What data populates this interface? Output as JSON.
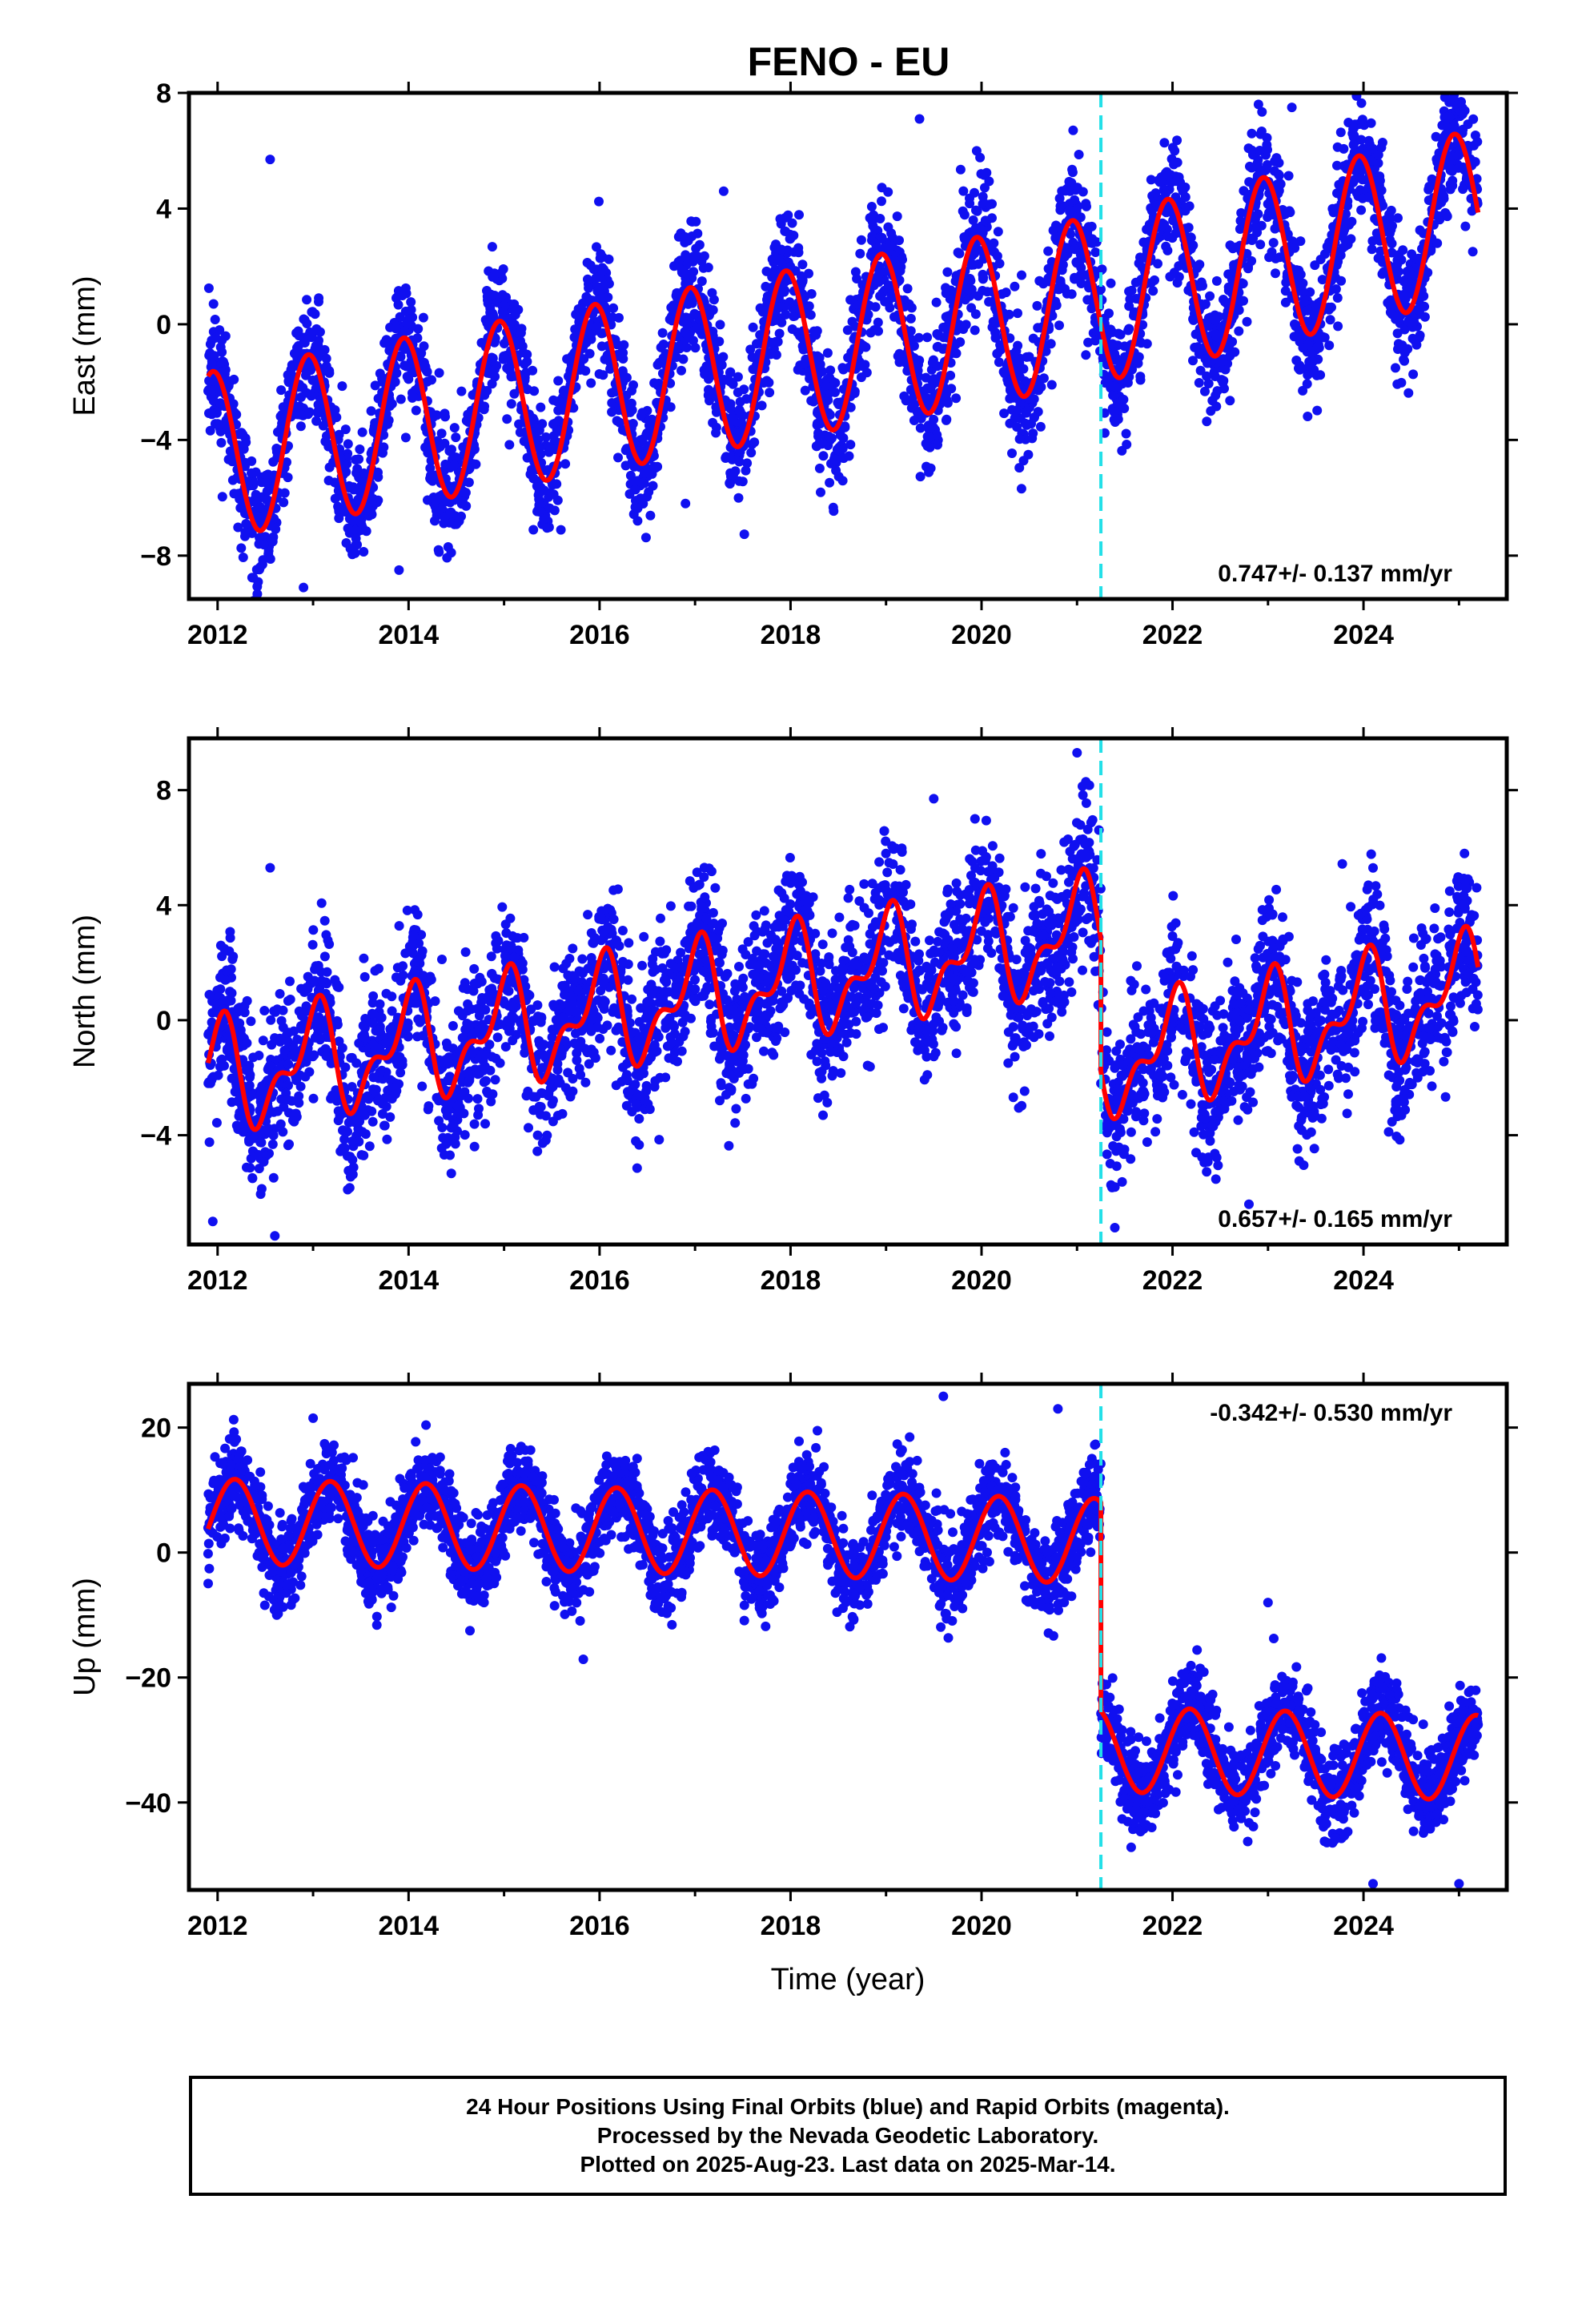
{
  "title": "FENO - EU",
  "colors": {
    "data": "#1010f0",
    "model": "#ff0000",
    "break": "#22e0e8",
    "frame": "#000000"
  },
  "chart_data": [
    {
      "type": "scatter",
      "component": "East",
      "ylabel": "East (mm)",
      "xlabel": "",
      "xlim": [
        2011.7,
        2025.5
      ],
      "ylim": [
        -9.5,
        8
      ],
      "yticks": [
        -8,
        -4,
        0,
        4,
        8
      ],
      "xticks": [
        2012,
        2014,
        2016,
        2018,
        2020,
        2022,
        2024
      ],
      "rate_label": "0.747+/- 0.137 mm/yr",
      "rate_position": "bottom-right",
      "break_year": 2021.25,
      "model": {
        "name": "model",
        "segments": [
          {
            "start": 2011.9,
            "end": 2021.25,
            "offset": -4.5,
            "trend": 0.58,
            "ref": 2012,
            "amp": 2.9,
            "phase_year": 0.45
          },
          {
            "start": 2021.25,
            "end": 2025.2,
            "offset": 0.9,
            "trend": 0.75,
            "ref": 2021.25,
            "amp": 2.9,
            "phase_year": 0.45
          }
        ]
      },
      "scatter": {
        "name": "daily positions",
        "spread": 1.1,
        "count": 4200
      },
      "outliers": [
        [
          2012.55,
          5.7
        ],
        [
          2017.3,
          4.6
        ],
        [
          2019.35,
          7.1
        ],
        [
          2023.25,
          7.5
        ],
        [
          2022.9,
          7.6
        ],
        [
          2012.9,
          -9.1
        ],
        [
          2016.9,
          -6.2
        ],
        [
          2013.9,
          -8.5
        ]
      ]
    },
    {
      "type": "scatter",
      "component": "North",
      "ylabel": "North (mm)",
      "xlabel": "",
      "xlim": [
        2011.7,
        2025.5
      ],
      "ylim": [
        -7.8,
        9.8
      ],
      "yticks": [
        -4,
        0,
        4,
        8
      ],
      "xticks": [
        2012,
        2014,
        2016,
        2018,
        2020,
        2022,
        2024
      ],
      "rate_label": "0.657+/- 0.165 mm/yr",
      "rate_position": "bottom-right",
      "break_year": 2021.25,
      "model": {
        "name": "model",
        "segments": [
          {
            "start": 2011.9,
            "end": 2021.25,
            "offset": -2.0,
            "trend": 0.55,
            "ref": 2012,
            "amp": 1.6,
            "phase_year": 0.5,
            "amp2": 0.9,
            "phase2": 0.1
          },
          {
            "start": 2021.25,
            "end": 2025.2,
            "offset": -1.5,
            "trend": 0.65,
            "ref": 2021.25,
            "amp": 1.6,
            "phase_year": 0.5,
            "amp2": 0.9,
            "phase2": 0.1
          }
        ]
      },
      "scatter": {
        "name": "daily positions",
        "spread": 1.3,
        "count": 4200
      },
      "outliers": [
        [
          2021.0,
          9.3
        ],
        [
          2012.55,
          5.3
        ],
        [
          2012.6,
          -7.5
        ],
        [
          2019.5,
          7.7
        ],
        [
          2022.8,
          -6.4
        ],
        [
          2011.95,
          -7.0
        ]
      ]
    },
    {
      "type": "scatter",
      "component": "Up",
      "ylabel": "Up (mm)",
      "xlabel": "Time (year)",
      "xlim": [
        2011.7,
        2025.5
      ],
      "ylim": [
        -54,
        27
      ],
      "yticks": [
        -40,
        -20,
        0,
        20
      ],
      "xticks": [
        2012,
        2014,
        2016,
        2018,
        2020,
        2022,
        2024
      ],
      "rate_label": "-0.342+/- 0.530 mm/yr",
      "rate_position": "top-right",
      "break_year": 2021.25,
      "model": {
        "name": "model",
        "segments": [
          {
            "start": 2011.9,
            "end": 2021.25,
            "offset": 5.0,
            "trend": -0.34,
            "ref": 2012,
            "amp": 6.8,
            "phase_year": 0.68
          },
          {
            "start": 2021.25,
            "end": 2025.2,
            "offset": -31.5,
            "trend": -0.34,
            "ref": 2021.25,
            "amp": 6.8,
            "phase_year": 0.68
          }
        ]
      },
      "scatter": {
        "name": "daily positions",
        "spread": 3.5,
        "count": 4200
      },
      "outliers": [
        [
          2019.6,
          25.0
        ],
        [
          2020.8,
          23.0
        ],
        [
          2013.0,
          21.5
        ],
        [
          2023.0,
          -8.0
        ],
        [
          2024.1,
          -53.0
        ],
        [
          2025.0,
          -53.0
        ]
      ]
    }
  ],
  "caption": {
    "line1": "24 Hour Positions Using Final Orbits (blue) and Rapid Orbits (magenta).",
    "line2": "Processed by the Nevada Geodetic Laboratory.",
    "line3": "Plotted on 2025-Aug-23. Last data on 2025-Mar-14."
  }
}
